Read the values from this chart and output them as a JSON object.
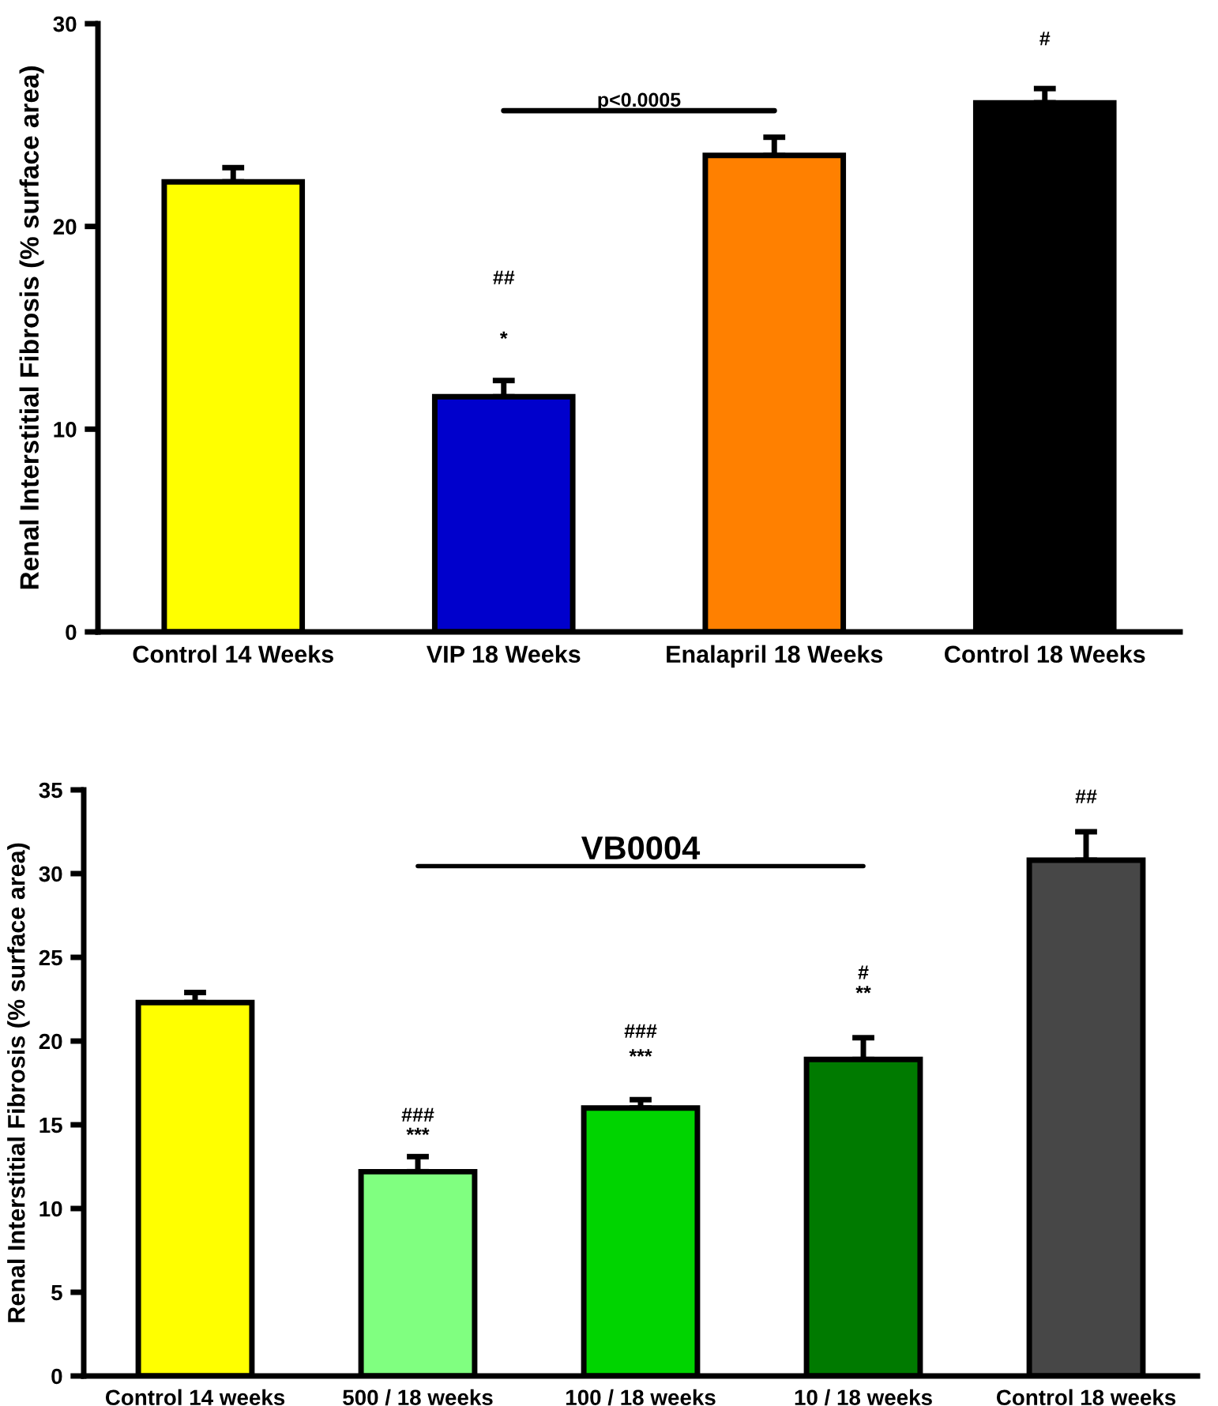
{
  "chart_data": [
    {
      "type": "bar",
      "ylabel": "Renal Interstitial Fibrosis (% surface area)",
      "categories": [
        "Control 14 Weeks",
        "VIP 18 Weeks",
        "Enalapril 18 Weeks",
        "Control 18 Weeks"
      ],
      "values": [
        22.2,
        11.6,
        23.5,
        26.1
      ],
      "colors": [
        "#ffff00",
        "#0000cc",
        "#ff8000",
        "#000000"
      ],
      "errors": [
        [
          22.2,
          22.9
        ],
        [
          11.6,
          12.4
        ],
        [
          23.5,
          24.4
        ],
        [
          26.1,
          26.8
        ]
      ],
      "ylim": [
        0,
        30
      ],
      "yticks": [
        0,
        10,
        20,
        30
      ],
      "grid": false,
      "annotations": [
        "##",
        "*",
        "#",
        "p<0.0005"
      ]
    },
    {
      "type": "bar",
      "ylabel": "Renal Interstitial Fibrosis (% surface area)",
      "categories": [
        "Control 14 weeks",
        "500 / 18 weeks",
        "100 / 18 weeks",
        "10 / 18 weeks",
        "Control 18 weeks"
      ],
      "values": [
        22.3,
        12.2,
        16.0,
        18.9,
        30.8
      ],
      "colors": [
        "#ffff00",
        "#80ff80",
        "#00d400",
        "#007a00",
        "#474747"
      ],
      "errors": [
        [
          22.3,
          22.9
        ],
        [
          12.2,
          13.1
        ],
        [
          16.0,
          16.5
        ],
        [
          18.9,
          20.2
        ],
        [
          30.8,
          32.5
        ]
      ],
      "ylim": [
        0,
        35
      ],
      "yticks": [
        0,
        5,
        10,
        15,
        20,
        25,
        30,
        35
      ],
      "grid": false,
      "annotations": [
        "###",
        "***",
        "###",
        "***",
        "#",
        "**",
        "##",
        "VB0004"
      ]
    }
  ]
}
